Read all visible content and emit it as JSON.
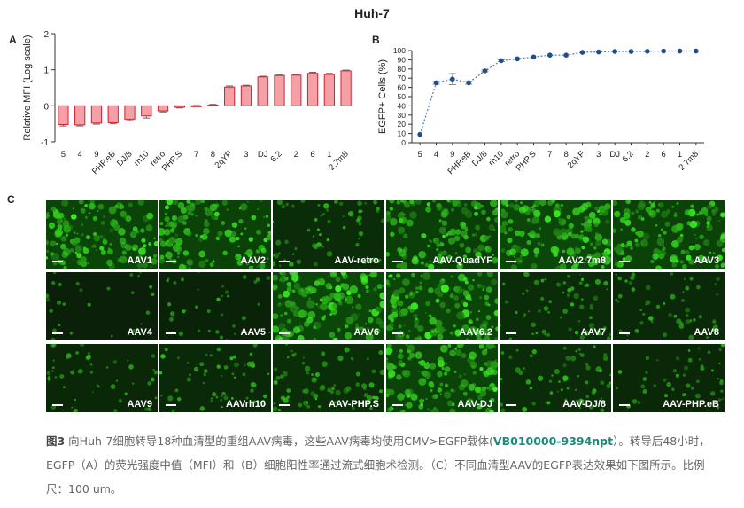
{
  "figure_title": "Huh-7",
  "panel_a": {
    "letter": "A",
    "chart_data": {
      "type": "bar",
      "title": "",
      "ylabel": "Relative MFI (Log scale)",
      "xlabel": "",
      "ylim": [
        -1,
        2
      ],
      "yticks": [
        "-1",
        "0",
        "1",
        "2"
      ],
      "categories": [
        "5",
        "4",
        "9",
        "PHP.eB",
        "DJ/8",
        "rh10",
        "retro",
        "PHP.S",
        "7",
        "8",
        "2qYF",
        "3",
        "DJ",
        "6.2",
        "2",
        "6",
        "1",
        "2.7m8"
      ],
      "values": [
        -0.52,
        -0.53,
        -0.48,
        -0.47,
        -0.37,
        -0.28,
        -0.14,
        -0.04,
        0.0,
        0.02,
        0.52,
        0.55,
        0.8,
        0.84,
        0.85,
        0.9,
        0.87,
        0.97
      ],
      "errors": [
        0.04,
        0.03,
        0.03,
        0.03,
        0.04,
        0.06,
        0.03,
        0.02,
        0.01,
        0.02,
        0.03,
        0.02,
        0.02,
        0.02,
        0.02,
        0.03,
        0.03,
        0.02
      ],
      "fill_color": "#f4a0a6",
      "edge_color": "#d2232f"
    }
  },
  "panel_b": {
    "letter": "B",
    "chart_data": {
      "type": "line",
      "title": "",
      "ylabel": "EGFP+ Cells (%)",
      "xlabel": "",
      "ylim": [
        0,
        100
      ],
      "yticks": [
        "0",
        "10",
        "20",
        "30",
        "40",
        "50",
        "60",
        "70",
        "80",
        "90",
        "100"
      ],
      "categories": [
        "5",
        "4",
        "9",
        "PHP.eB",
        "DJ/8",
        "rh10",
        "retro",
        "PHP.S",
        "7",
        "8",
        "2qYF",
        "3",
        "DJ",
        "6.2",
        "2",
        "6",
        "1",
        "2.7m8"
      ],
      "values": [
        9,
        65,
        69,
        65,
        78,
        89,
        91,
        93,
        95,
        95,
        98,
        98.5,
        99,
        99,
        99.2,
        99.5,
        99.5,
        99.5
      ],
      "errors": [
        0,
        1.5,
        6,
        1.5,
        1,
        1,
        0.8,
        0.8,
        0.6,
        0.6,
        0.5,
        0.4,
        0.4,
        0.3,
        0.3,
        0.3,
        0.3,
        0.3
      ],
      "line_color": "#4a73b8",
      "marker_color": "#1f4e8c"
    }
  },
  "panel_c": {
    "letter": "C",
    "tiles": [
      {
        "label": "AAV1",
        "density": 0.85
      },
      {
        "label": "AAV2",
        "density": 0.8
      },
      {
        "label": "AAV-retro",
        "density": 0.3
      },
      {
        "label": "AAV-QuadYF",
        "density": 0.75
      },
      {
        "label": "AAV2.7m8",
        "density": 0.9
      },
      {
        "label": "AAV3",
        "density": 0.8
      },
      {
        "label": "AAV4",
        "density": 0.05
      },
      {
        "label": "AAV5",
        "density": 0.1
      },
      {
        "label": "AAV6",
        "density": 0.9
      },
      {
        "label": "AAV6.2",
        "density": 0.88
      },
      {
        "label": "AAV7",
        "density": 0.3
      },
      {
        "label": "AAV8",
        "density": 0.25
      },
      {
        "label": "AAV9",
        "density": 0.2
      },
      {
        "label": "AAVrh10",
        "density": 0.25
      },
      {
        "label": "AAV-PHP.S",
        "density": 0.35
      },
      {
        "label": "AAV-DJ",
        "density": 0.85
      },
      {
        "label": "AAV-DJ/8",
        "density": 0.3
      },
      {
        "label": "AAV-PHP.eB",
        "density": 0.2
      }
    ]
  },
  "caption": {
    "label": "图3",
    "text1": " 向Huh-7细胞转导18种血清型的重组AAV病毒，这些AAV病毒均使用CMV>EGFP载体(",
    "vector_id": "VB010000-9394npt",
    "text2": "）。转导后48小时，EGFP（A）的荧光强度中值（MFI）和（B）细胞阳性率通过流式细胞术检测。（C）不同血清型AAV的EGFP表达效果如下图所示。比例尺：100 um。"
  }
}
